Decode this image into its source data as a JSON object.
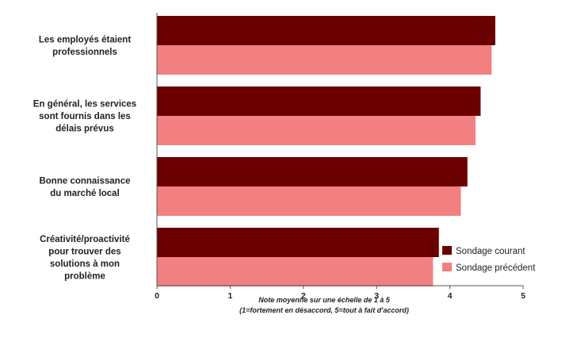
{
  "chart_data": {
    "type": "bar",
    "orientation": "horizontal",
    "categories": [
      [
        "Les employés étaient",
        "professionnels"
      ],
      [
        "En général, les services",
        "sont fournis dans les",
        "délais prévus"
      ],
      [
        "Bonne connaissance",
        "du marché local"
      ],
      [
        "Créativité/proactivité",
        "pour trouver des",
        "solutions à mon",
        "problème"
      ]
    ],
    "series": [
      {
        "name": "Sondage courant",
        "color": "#6b0000",
        "values": [
          4.62,
          4.42,
          4.24,
          3.85
        ]
      },
      {
        "name": "Sondage précédent",
        "color": "#f28080",
        "values": [
          4.57,
          4.35,
          4.15,
          3.77
        ]
      }
    ],
    "xlim": [
      0,
      5
    ],
    "x_ticks": [
      "0",
      "1",
      "2",
      "3",
      "4",
      "5"
    ],
    "xlabel": [
      "Note moyenne sur une échelle de 1 à 5",
      "(1=fortement en désaccord, 5=tout à fait d'accord)"
    ],
    "legend_position": "bottom-right",
    "grid": false
  }
}
